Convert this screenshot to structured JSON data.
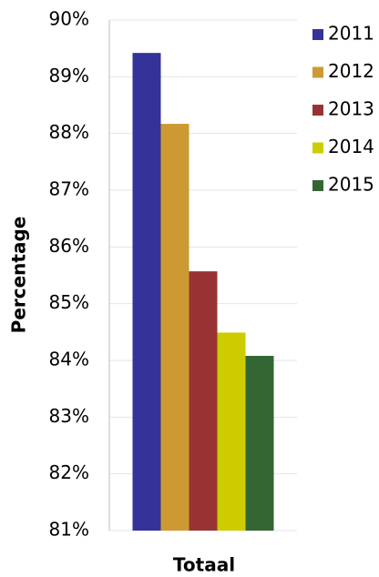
{
  "chart_data": {
    "type": "bar",
    "ylabel": "Percentage",
    "categories": [
      "Totaal"
    ],
    "series": [
      {
        "name": "2011",
        "color": "#333399",
        "values": [
          89.42
        ]
      },
      {
        "name": "2012",
        "color": "#cc9933",
        "values": [
          88.17
        ]
      },
      {
        "name": "2013",
        "color": "#993333",
        "values": [
          85.57
        ]
      },
      {
        "name": "2014",
        "color": "#cccc00",
        "values": [
          84.49
        ]
      },
      {
        "name": "2015",
        "color": "#336633",
        "values": [
          84.08
        ]
      }
    ],
    "ylim": [
      81,
      90
    ],
    "yticks": [
      {
        "value": 81,
        "label": "81%"
      },
      {
        "value": 82,
        "label": "82%"
      },
      {
        "value": 83,
        "label": "83%"
      },
      {
        "value": 84,
        "label": "84%"
      },
      {
        "value": 85,
        "label": "85%"
      },
      {
        "value": 86,
        "label": "86%"
      },
      {
        "value": 87,
        "label": "87%"
      },
      {
        "value": 88,
        "label": "88%"
      },
      {
        "value": 89,
        "label": "89%"
      },
      {
        "value": 90,
        "label": "90%"
      }
    ],
    "grid": true,
    "legend": "right"
  }
}
